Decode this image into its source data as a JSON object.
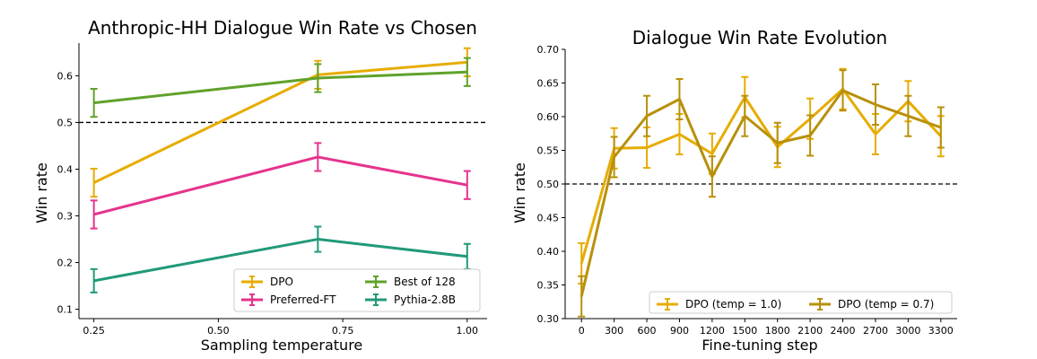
{
  "chart_data": [
    {
      "type": "line",
      "title": "Anthropic-HH Dialogue Win Rate vs Chosen",
      "xlabel": "Sampling temperature",
      "ylabel": "Win rate",
      "xlim": [
        0.22,
        1.04
      ],
      "ylim": [
        0.08,
        0.67
      ],
      "xticks": [
        0.25,
        0.5,
        0.75,
        1.0
      ],
      "xtick_labels": [
        "0.25",
        "0.50",
        "0.75",
        "1.00"
      ],
      "yticks": [
        0.1,
        0.2,
        0.3,
        0.4,
        0.5,
        0.6
      ],
      "ytick_labels": [
        "0.1",
        "0.2",
        "0.3",
        "0.4",
        "0.5",
        "0.6"
      ],
      "reference_line": 0.5,
      "legend_position": "lower-right",
      "series": [
        {
          "name": "DPO",
          "color": "#e6ac00",
          "x": [
            0.25,
            0.7,
            1.0
          ],
          "y": [
            0.371,
            0.602,
            0.629
          ],
          "err": [
            0.03,
            0.03,
            0.03
          ]
        },
        {
          "name": "Best of 128",
          "color": "#5fa22a",
          "x": [
            0.25,
            0.7,
            1.0
          ],
          "y": [
            0.542,
            0.595,
            0.608
          ],
          "err": [
            0.03,
            0.03,
            0.03
          ]
        },
        {
          "name": "Preferred-FT",
          "color": "#e6338c",
          "x": [
            0.25,
            0.7,
            1.0
          ],
          "y": [
            0.303,
            0.426,
            0.366
          ],
          "err": [
            0.03,
            0.03,
            0.03
          ]
        },
        {
          "name": "Pythia-2.8B",
          "color": "#20997a",
          "x": [
            0.25,
            0.7,
            1.0
          ],
          "y": [
            0.161,
            0.25,
            0.213
          ],
          "err": [
            0.025,
            0.027,
            0.027
          ]
        }
      ]
    },
    {
      "type": "line",
      "title": "Dialogue Win Rate Evolution",
      "xlabel": "Fine-tuning step",
      "ylabel": "Win rate",
      "xlim": [
        -150,
        3450
      ],
      "ylim": [
        0.3,
        0.7
      ],
      "xticks": [
        0,
        300,
        600,
        900,
        1200,
        1500,
        1800,
        2100,
        2400,
        2700,
        3000,
        3300
      ],
      "xtick_labels": [
        "0",
        "300",
        "600",
        "900",
        "1200",
        "1500",
        "1800",
        "2100",
        "2400",
        "2700",
        "3000",
        "3300"
      ],
      "yticks": [
        0.3,
        0.35,
        0.4,
        0.45,
        0.5,
        0.55,
        0.6,
        0.65,
        0.7
      ],
      "ytick_labels": [
        "0.30",
        "0.35",
        "0.40",
        "0.45",
        "0.50",
        "0.55",
        "0.60",
        "0.65",
        "0.70"
      ],
      "reference_line": 0.5,
      "legend_position": "lower-right",
      "series": [
        {
          "name": "DPO (temp = 1.0)",
          "color": "#e6ac00",
          "x": [
            0,
            300,
            600,
            900,
            1200,
            1500,
            1800,
            2100,
            2400,
            2700,
            3000,
            3300
          ],
          "y": [
            0.382,
            0.553,
            0.554,
            0.574,
            0.545,
            0.629,
            0.555,
            0.597,
            0.641,
            0.574,
            0.623,
            0.571
          ],
          "err": [
            0.03,
            0.03,
            0.03,
            0.03,
            0.03,
            0.03,
            0.03,
            0.03,
            0.03,
            0.03,
            0.03,
            0.03
          ]
        },
        {
          "name": "DPO (temp = 0.7)",
          "color": "#b8900a",
          "x": [
            0,
            300,
            600,
            900,
            1200,
            1500,
            1800,
            2100,
            2400,
            2700,
            3000,
            3300
          ],
          "y": [
            0.333,
            0.54,
            0.601,
            0.626,
            0.511,
            0.601,
            0.561,
            0.572,
            0.639,
            0.618,
            0.601,
            0.584
          ],
          "err": [
            0.03,
            0.03,
            0.03,
            0.03,
            0.03,
            0.03,
            0.03,
            0.03,
            0.03,
            0.03,
            0.03,
            0.03
          ]
        }
      ]
    }
  ]
}
